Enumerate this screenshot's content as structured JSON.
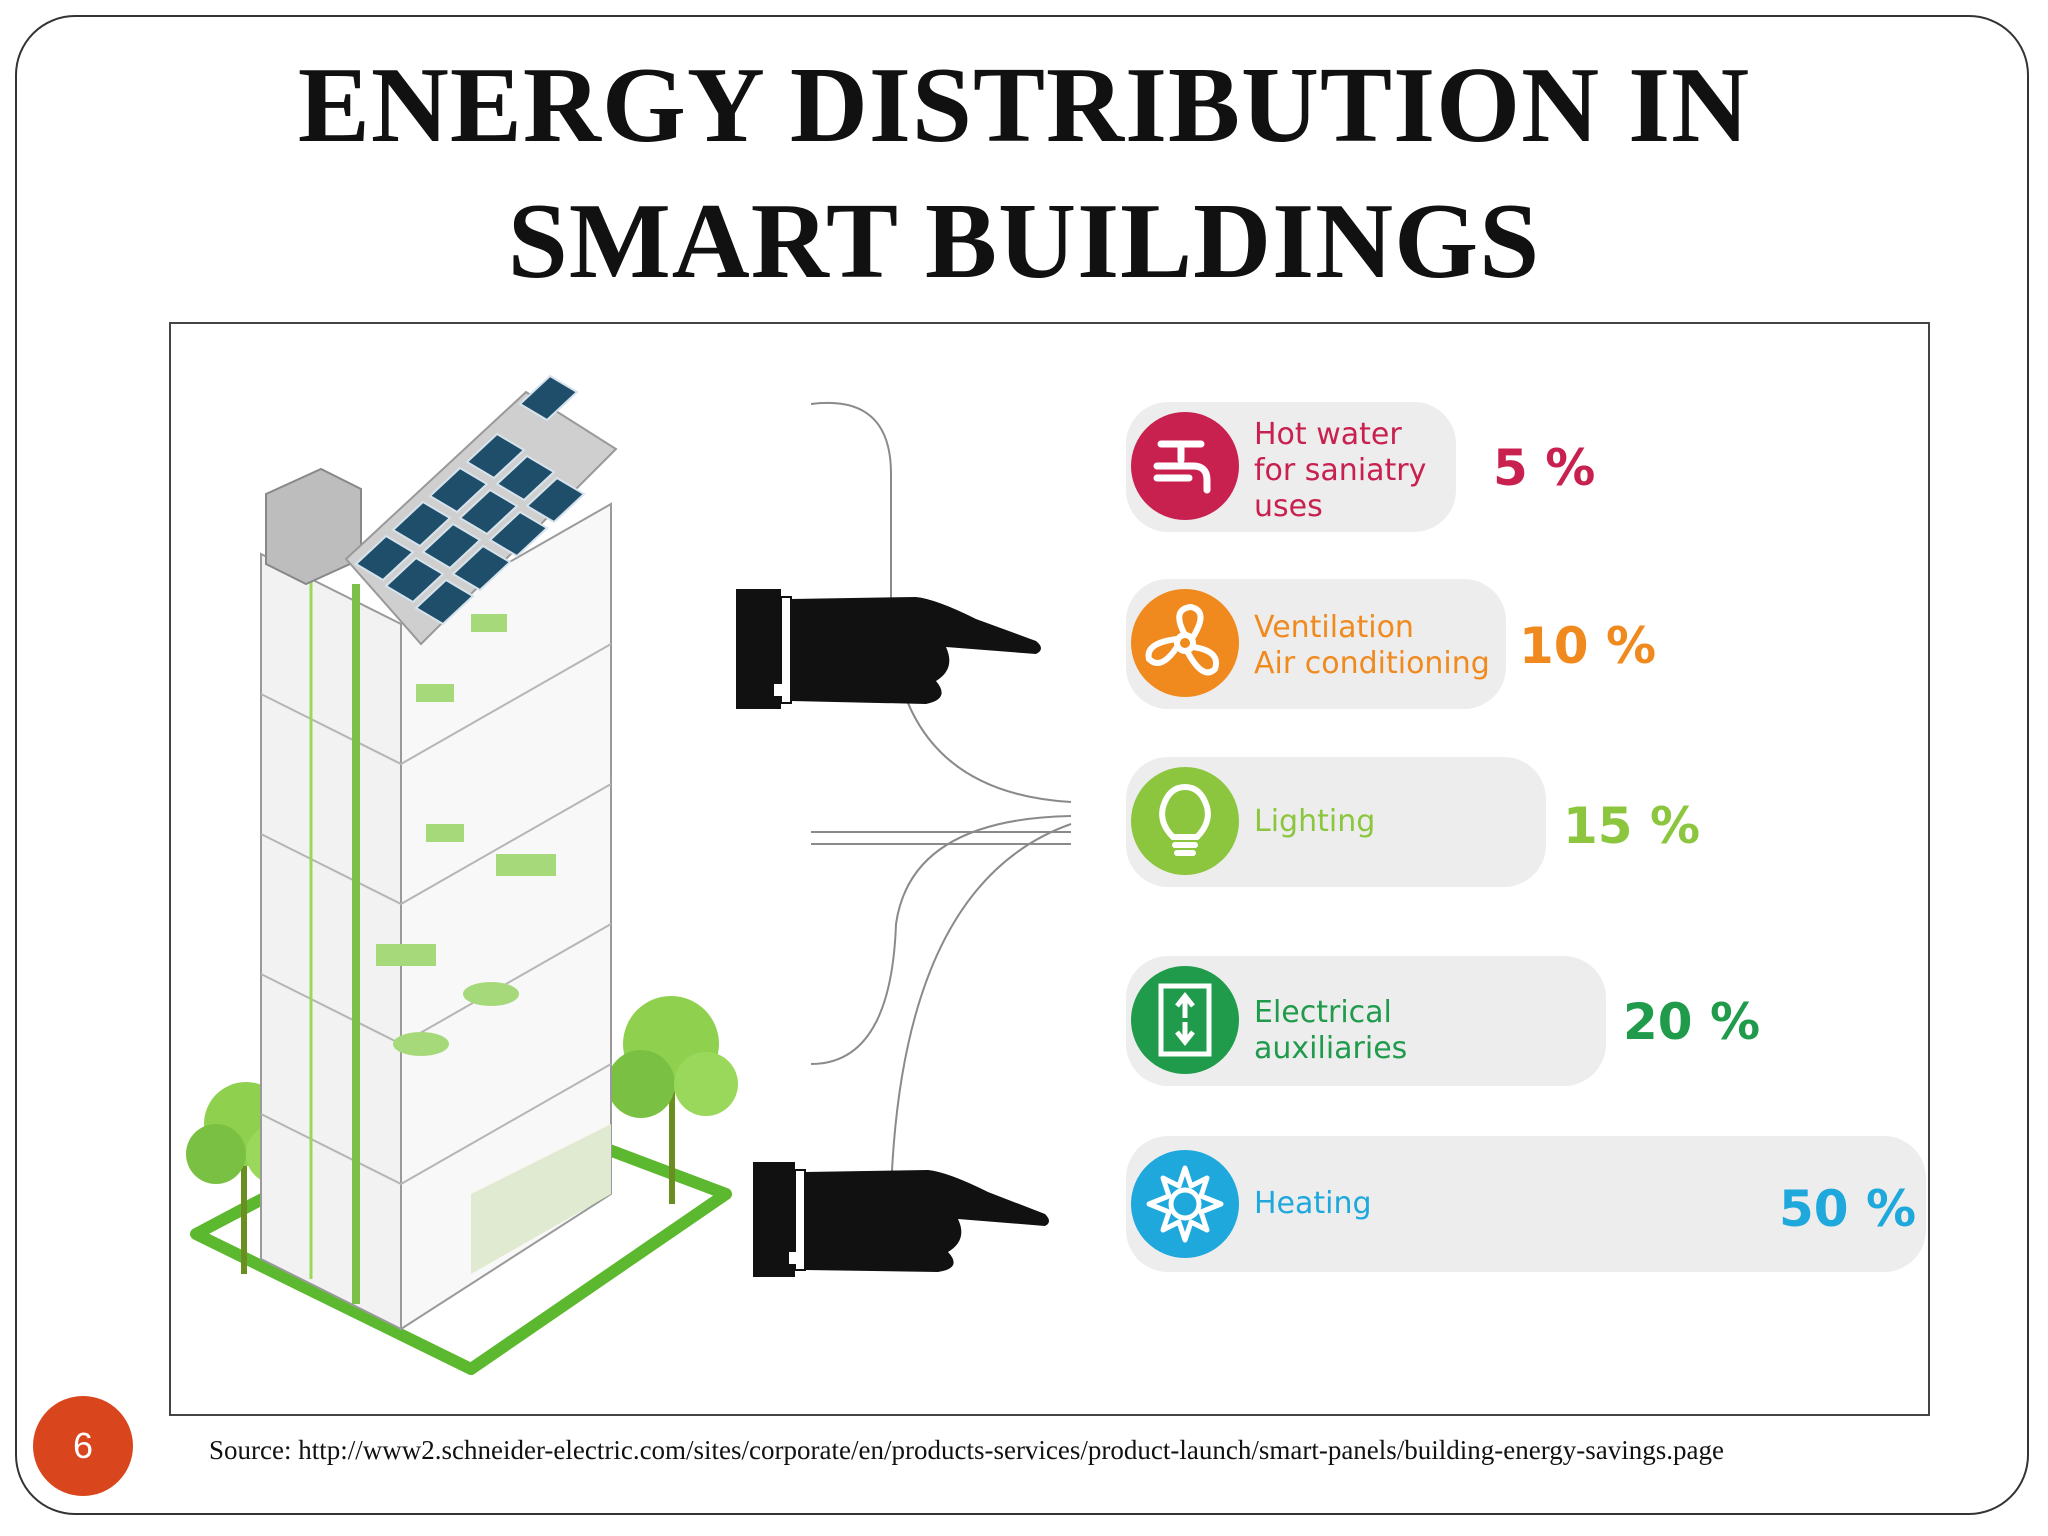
{
  "slide": {
    "title_line1": "ENERGY DISTRIBUTION IN",
    "title_line2": "SMART BUILDINGS",
    "page_number": "6",
    "source": "Source: http://www2.schneider-electric.com/sites/corporate/en/products-services/product-launch/smart-panels/building-energy-savings.page"
  },
  "colors": {
    "hot_water": "#c8214f",
    "ventilation": "#f08a1e",
    "lighting": "#8cc63e",
    "electrical": "#1f9b4b",
    "heating": "#1ea8dc",
    "badge": "#d9451c"
  },
  "chart_data": {
    "type": "bar",
    "categories": [
      "Hot water for saniatry uses",
      "Ventilation Air conditioning",
      "Lighting",
      "Electrical auxiliaries",
      "Heating"
    ],
    "values": [
      5,
      10,
      15,
      20,
      50
    ],
    "unit": "%"
  },
  "rows": [
    {
      "label_line1": "Hot water",
      "label_line2": "for saniatry",
      "label_line3": "uses",
      "percent": "5 %",
      "icon": "faucet-icon"
    },
    {
      "label_line1": "Ventilation",
      "label_line2": "Air conditioning",
      "label_line3": "",
      "percent": "10 %",
      "icon": "fan-icon"
    },
    {
      "label_line1": "Lighting",
      "label_line2": "",
      "label_line3": "",
      "percent": "15 %",
      "icon": "lightbulb-icon"
    },
    {
      "label_line1": "Electrical",
      "label_line2": "auxiliaries",
      "label_line3": "",
      "percent": "20 %",
      "icon": "elevator-icon"
    },
    {
      "label_line1": "Heating",
      "label_line2": "",
      "label_line3": "",
      "percent": "50 %",
      "icon": "sun-heat-icon"
    }
  ]
}
